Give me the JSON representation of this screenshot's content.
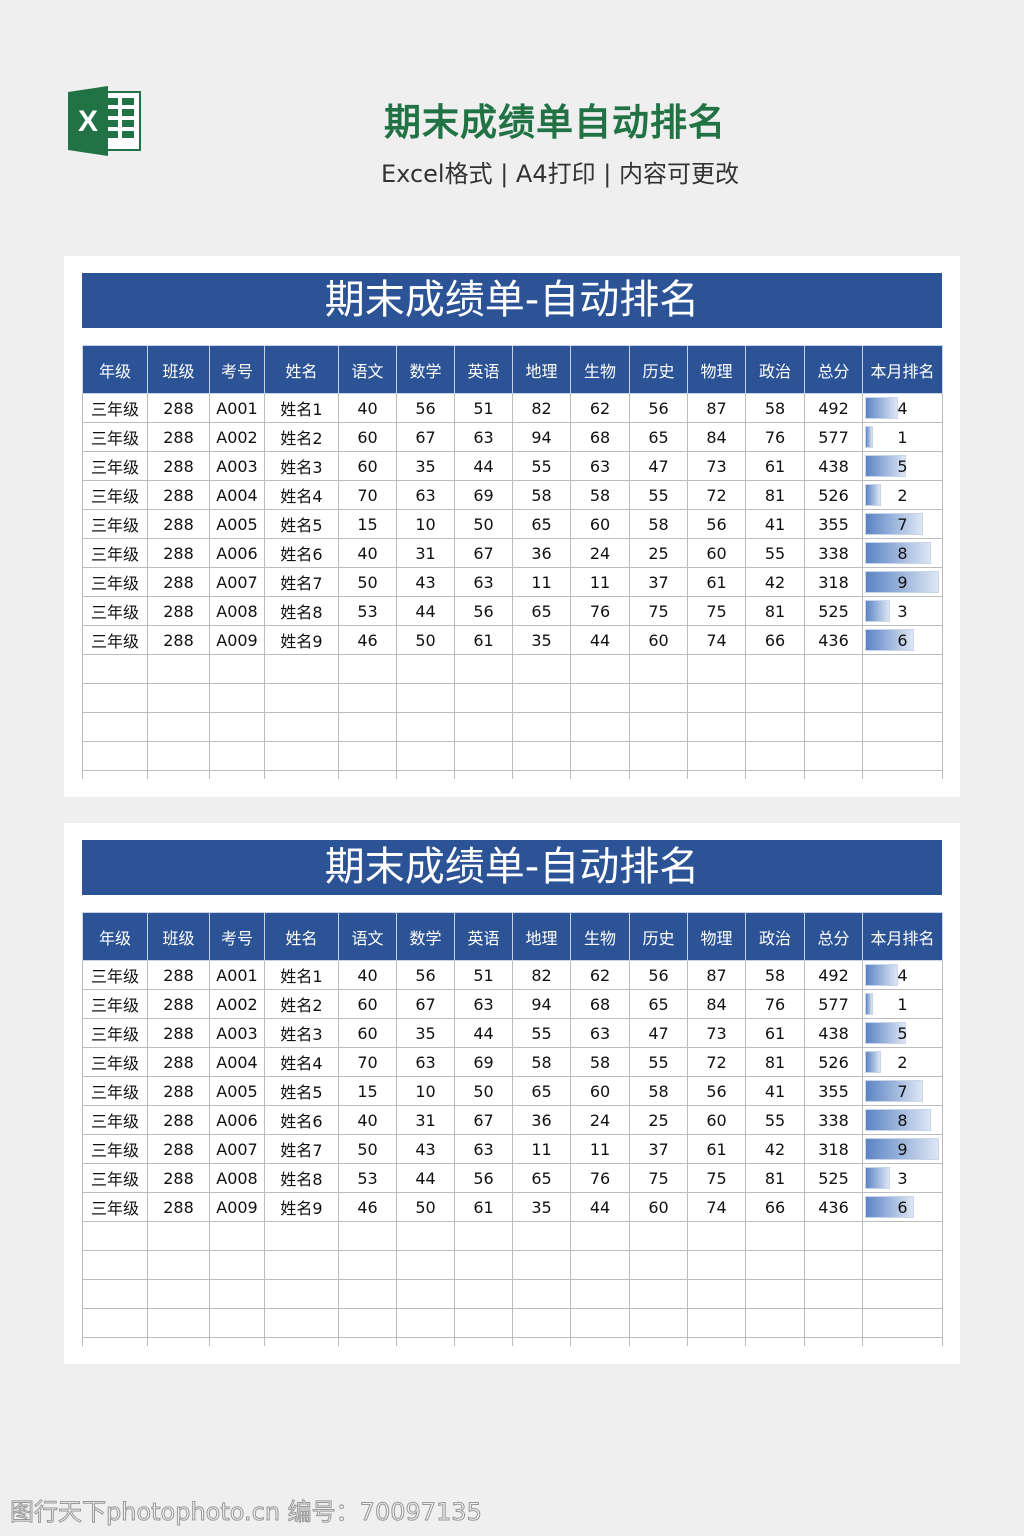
{
  "header": {
    "title": "期末成绩单自动排名",
    "subtitle": "Excel格式 | A4打印 | 内容可更改",
    "logo_letter": "X"
  },
  "colors": {
    "title_green": "#217346",
    "table_blue": "#2c5395"
  },
  "sheets": [
    {
      "title": "期末成绩单-自动排名"
    },
    {
      "title": "期末成绩单-自动排名"
    }
  ],
  "columns": [
    "年级",
    "班级",
    "考号",
    "姓名",
    "语文",
    "数学",
    "英语",
    "地理",
    "生物",
    "历史",
    "物理",
    "政治",
    "总分",
    "本月排名"
  ],
  "rows": [
    [
      "三年级",
      "288",
      "A001",
      "姓名1",
      "40",
      "56",
      "51",
      "82",
      "62",
      "56",
      "87",
      "58",
      "492",
      "4"
    ],
    [
      "三年级",
      "288",
      "A002",
      "姓名2",
      "60",
      "67",
      "63",
      "94",
      "68",
      "65",
      "84",
      "76",
      "577",
      "1"
    ],
    [
      "三年级",
      "288",
      "A003",
      "姓名3",
      "60",
      "35",
      "44",
      "55",
      "63",
      "47",
      "73",
      "61",
      "438",
      "5"
    ],
    [
      "三年级",
      "288",
      "A004",
      "姓名4",
      "70",
      "63",
      "69",
      "58",
      "58",
      "55",
      "72",
      "81",
      "526",
      "2"
    ],
    [
      "三年级",
      "288",
      "A005",
      "姓名5",
      "15",
      "10",
      "50",
      "65",
      "60",
      "58",
      "56",
      "41",
      "355",
      "7"
    ],
    [
      "三年级",
      "288",
      "A006",
      "姓名6",
      "40",
      "31",
      "67",
      "36",
      "24",
      "25",
      "60",
      "55",
      "338",
      "8"
    ],
    [
      "三年级",
      "288",
      "A007",
      "姓名7",
      "50",
      "43",
      "63",
      "11",
      "11",
      "37",
      "61",
      "42",
      "318",
      "9"
    ],
    [
      "三年级",
      "288",
      "A008",
      "姓名8",
      "53",
      "44",
      "56",
      "65",
      "76",
      "75",
      "75",
      "81",
      "525",
      "3"
    ],
    [
      "三年级",
      "288",
      "A009",
      "姓名9",
      "46",
      "50",
      "61",
      "35",
      "44",
      "60",
      "74",
      "66",
      "436",
      "6"
    ]
  ],
  "watermark": "图行天下photophoto.cn 编号：70097135"
}
